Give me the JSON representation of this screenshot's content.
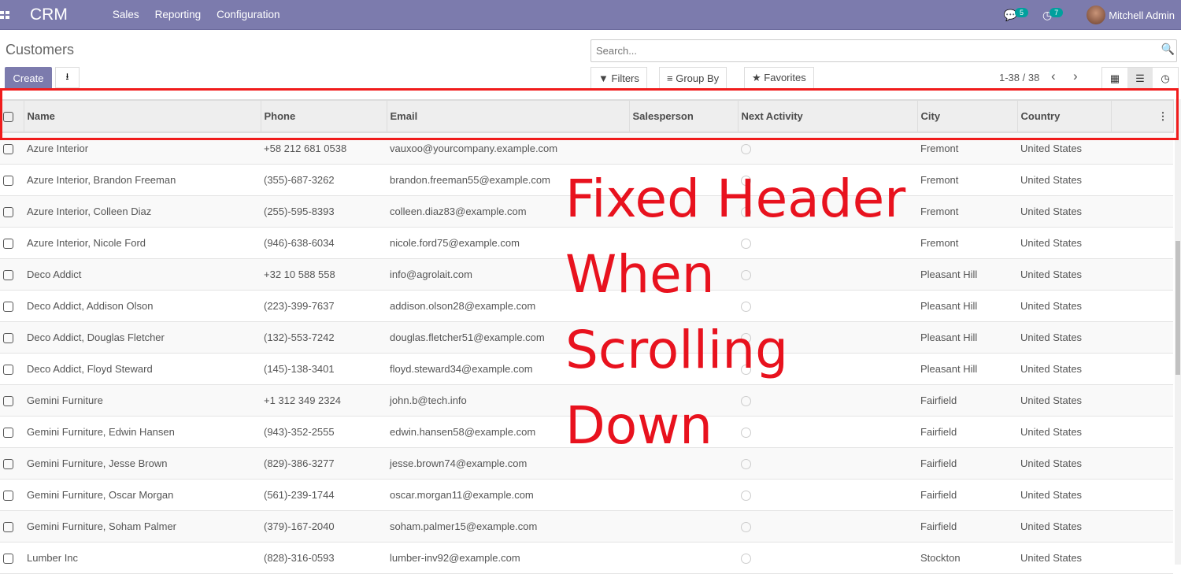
{
  "navbar": {
    "brand": "CRM",
    "menu": [
      "Sales",
      "Reporting",
      "Configuration"
    ],
    "messages_count": "5",
    "activities_count": "7",
    "user": "Mitchell Admin",
    "color": "#7c7bad"
  },
  "control_panel": {
    "title": "Customers",
    "create_label": "Create",
    "search_placeholder": "Search...",
    "filters_label": "Filters",
    "group_by_label": "Group By",
    "favorites_label": "Favorites",
    "pager": "1-38 / 38"
  },
  "table": {
    "columns": [
      "Name",
      "Phone",
      "Email",
      "Salesperson",
      "Next Activity",
      "City",
      "Country"
    ],
    "rows": [
      [
        "Azure Interior",
        "+58 212 681 0538",
        "vauxoo@yourcompany.example.com",
        "",
        "",
        "Fremont",
        "United States"
      ],
      [
        "Azure Interior, Brandon Freeman",
        "(355)-687-3262",
        "brandon.freeman55@example.com",
        "",
        "",
        "Fremont",
        "United States"
      ],
      [
        "Azure Interior, Colleen Diaz",
        "(255)-595-8393",
        "colleen.diaz83@example.com",
        "",
        "",
        "Fremont",
        "United States"
      ],
      [
        "Azure Interior, Nicole Ford",
        "(946)-638-6034",
        "nicole.ford75@example.com",
        "",
        "",
        "Fremont",
        "United States"
      ],
      [
        "Deco Addict",
        "+32 10 588 558",
        "info@agrolait.com",
        "",
        "",
        "Pleasant Hill",
        "United States"
      ],
      [
        "Deco Addict, Addison Olson",
        "(223)-399-7637",
        "addison.olson28@example.com",
        "",
        "",
        "Pleasant Hill",
        "United States"
      ],
      [
        "Deco Addict, Douglas Fletcher",
        "(132)-553-7242",
        "douglas.fletcher51@example.com",
        "",
        "",
        "Pleasant Hill",
        "United States"
      ],
      [
        "Deco Addict, Floyd Steward",
        "(145)-138-3401",
        "floyd.steward34@example.com",
        "",
        "",
        "Pleasant Hill",
        "United States"
      ],
      [
        "Gemini Furniture",
        "+1 312 349 2324",
        "john.b@tech.info",
        "",
        "",
        "Fairfield",
        "United States"
      ],
      [
        "Gemini Furniture, Edwin Hansen",
        "(943)-352-2555",
        "edwin.hansen58@example.com",
        "",
        "",
        "Fairfield",
        "United States"
      ],
      [
        "Gemini Furniture, Jesse Brown",
        "(829)-386-3277",
        "jesse.brown74@example.com",
        "",
        "",
        "Fairfield",
        "United States"
      ],
      [
        "Gemini Furniture, Oscar Morgan",
        "(561)-239-1744",
        "oscar.morgan11@example.com",
        "",
        "",
        "Fairfield",
        "United States"
      ],
      [
        "Gemini Furniture, Soham Palmer",
        "(379)-167-2040",
        "soham.palmer15@example.com",
        "",
        "",
        "Fairfield",
        "United States"
      ],
      [
        "Lumber Inc",
        "(828)-316-0593",
        "lumber-inv92@example.com",
        "",
        "",
        "Stockton",
        "United States"
      ]
    ]
  },
  "annotation": {
    "text": "Fixed Header When Scrolling Down",
    "color": "#e8121e"
  }
}
